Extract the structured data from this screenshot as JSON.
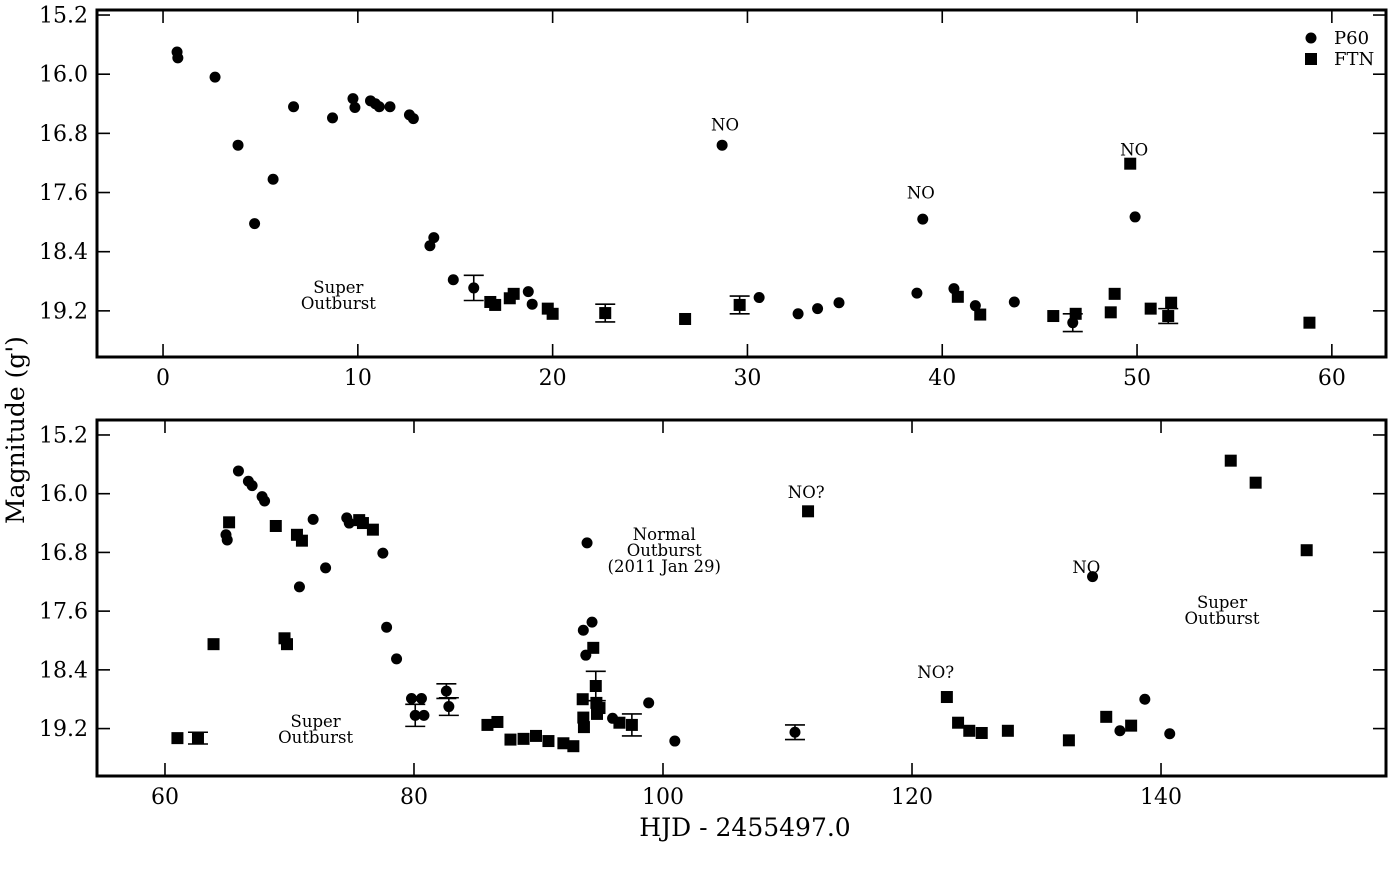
{
  "figure": {
    "xlabel": "HJD - 2455497.0",
    "ylabel": "Magnitude (g')",
    "background": "#ffffff",
    "ink": "#000000"
  },
  "legend": {
    "position": "top-right",
    "items": [
      {
        "label": "P60",
        "marker": "circle"
      },
      {
        "label": "FTN",
        "marker": "square"
      }
    ]
  },
  "chart_data": {
    "type": "scatter",
    "title": "",
    "xlabel": "HJD - 2455497.0",
    "ylabel": "Magnitude (g')",
    "y_axis_inverted": true,
    "grid": false,
    "panels": [
      {
        "name": "top",
        "xlim": [
          -3.39,
          62.78
        ],
        "ylim": [
          15.132,
          19.824
        ],
        "xticks": [
          0,
          10,
          20,
          30,
          40,
          50,
          60
        ],
        "yticks": [
          15.2,
          16.0,
          16.8,
          17.6,
          18.4,
          19.2
        ],
        "series": [
          {
            "name": "P60",
            "marker": "circle",
            "points": [
              [
                0.72,
                15.7
              ],
              [
                0.76,
                15.78
              ],
              [
                2.67,
                16.04
              ],
              [
                3.85,
                16.96
              ],
              [
                4.7,
                18.02
              ],
              [
                5.65,
                17.42
              ],
              [
                6.7,
                16.44
              ],
              [
                8.7,
                16.59
              ],
              [
                9.75,
                16.33
              ],
              [
                9.85,
                16.45
              ],
              [
                10.65,
                16.36
              ],
              [
                10.9,
                16.4
              ],
              [
                11.1,
                16.44
              ],
              [
                11.65,
                16.44
              ],
              [
                12.65,
                16.55
              ],
              [
                12.85,
                16.6
              ],
              [
                13.7,
                18.32
              ],
              [
                13.9,
                18.21
              ],
              [
                14.9,
                18.78
              ],
              [
                15.95,
                18.89,
                0.17
              ],
              [
                18.75,
                18.94
              ],
              [
                18.95,
                19.11
              ],
              [
                28.7,
                16.96
              ],
              [
                30.6,
                19.02
              ],
              [
                32.6,
                19.24
              ],
              [
                33.6,
                19.17
              ],
              [
                34.7,
                19.09
              ],
              [
                38.7,
                18.96
              ],
              [
                39.0,
                17.96
              ],
              [
                40.6,
                18.9
              ],
              [
                41.7,
                19.13
              ],
              [
                43.7,
                19.08
              ],
              [
                46.7,
                19.36,
                0.12
              ],
              [
                49.9,
                17.93
              ]
            ]
          },
          {
            "name": "FTN",
            "marker": "square",
            "points": [
              [
                16.8,
                19.08
              ],
              [
                17.05,
                19.12
              ],
              [
                17.8,
                19.03
              ],
              [
                18.0,
                18.97
              ],
              [
                19.75,
                19.17
              ],
              [
                20.0,
                19.24
              ],
              [
                22.7,
                19.23,
                0.12
              ],
              [
                26.8,
                19.31
              ],
              [
                29.6,
                19.12,
                0.12
              ],
              [
                40.8,
                19.01
              ],
              [
                41.95,
                19.25
              ],
              [
                45.7,
                19.27
              ],
              [
                46.85,
                19.24
              ],
              [
                48.65,
                19.22
              ],
              [
                48.85,
                18.97
              ],
              [
                49.65,
                17.21
              ],
              [
                50.7,
                19.17
              ],
              [
                51.6,
                19.27,
                0.1
              ],
              [
                51.75,
                19.09
              ],
              [
                58.85,
                19.36
              ]
            ]
          }
        ],
        "annotations": [
          {
            "lines": [
              "Super",
              "Outburst"
            ],
            "x": 9.0,
            "y": 18.96
          },
          {
            "lines": [
              "NO"
            ],
            "x": 28.85,
            "y": 16.76
          },
          {
            "lines": [
              "NO"
            ],
            "x": 38.9,
            "y": 17.68
          },
          {
            "lines": [
              "NO"
            ],
            "x": 49.85,
            "y": 17.1
          }
        ],
        "show_legend": true
      },
      {
        "name": "bottom",
        "xlim": [
          54.54,
          158.07
        ],
        "ylim": [
          14.996,
          19.846
        ],
        "xticks": [
          60,
          80,
          100,
          120,
          140
        ],
        "yticks": [
          15.2,
          16.0,
          16.8,
          17.6,
          18.4,
          19.2
        ],
        "series": [
          {
            "name": "P60",
            "marker": "circle",
            "points": [
              [
                64.9,
                16.56
              ],
              [
                65.0,
                16.63
              ],
              [
                65.9,
                15.69
              ],
              [
                66.7,
                15.83
              ],
              [
                67.0,
                15.89
              ],
              [
                67.8,
                16.04
              ],
              [
                68.0,
                16.1
              ],
              [
                70.8,
                17.27
              ],
              [
                71.9,
                16.35
              ],
              [
                72.9,
                17.01
              ],
              [
                74.6,
                16.33
              ],
              [
                74.8,
                16.4
              ],
              [
                77.5,
                16.81
              ],
              [
                77.8,
                17.82
              ],
              [
                78.6,
                18.25
              ],
              [
                79.8,
                18.79
              ],
              [
                80.1,
                19.02,
                0.15
              ],
              [
                80.6,
                18.79
              ],
              [
                80.8,
                19.02
              ],
              [
                82.6,
                18.69,
                0.1
              ],
              [
                82.8,
                18.9,
                0.12
              ],
              [
                93.6,
                17.86
              ],
              [
                93.8,
                18.2
              ],
              [
                93.9,
                16.67
              ],
              [
                94.3,
                17.75
              ],
              [
                95.95,
                19.06
              ],
              [
                98.85,
                18.85
              ],
              [
                100.95,
                19.37
              ],
              [
                110.6,
                19.25,
                0.1
              ],
              [
                134.5,
                17.13
              ],
              [
                136.7,
                19.23
              ],
              [
                138.7,
                18.8
              ],
              [
                140.7,
                19.27
              ]
            ]
          },
          {
            "name": "FTN",
            "marker": "square",
            "points": [
              [
                61.0,
                19.33
              ],
              [
                62.65,
                19.33,
                0.08
              ],
              [
                63.9,
                18.05
              ],
              [
                65.15,
                16.39
              ],
              [
                68.9,
                16.44
              ],
              [
                69.6,
                17.97
              ],
              [
                69.8,
                18.05
              ],
              [
                70.6,
                16.56
              ],
              [
                71.0,
                16.64
              ],
              [
                75.6,
                16.36
              ],
              [
                75.9,
                16.4
              ],
              [
                76.7,
                16.49
              ],
              [
                85.9,
                19.15
              ],
              [
                86.7,
                19.11
              ],
              [
                87.75,
                19.35
              ],
              [
                88.8,
                19.34
              ],
              [
                89.8,
                19.3
              ],
              [
                90.8,
                19.37
              ],
              [
                92.0,
                19.4
              ],
              [
                92.8,
                19.44
              ],
              [
                93.55,
                18.8
              ],
              [
                93.6,
                19.05
              ],
              [
                93.65,
                19.18
              ],
              [
                94.4,
                18.1
              ],
              [
                94.6,
                18.62,
                0.2
              ],
              [
                94.65,
                18.85
              ],
              [
                94.7,
                19.0
              ],
              [
                94.9,
                18.92
              ],
              [
                96.5,
                19.12
              ],
              [
                97.5,
                19.15,
                0.15
              ],
              [
                111.65,
                16.24
              ],
              [
                122.8,
                18.77
              ],
              [
                123.7,
                19.12
              ],
              [
                124.6,
                19.23
              ],
              [
                125.6,
                19.26
              ],
              [
                127.7,
                19.23
              ],
              [
                132.6,
                19.36
              ],
              [
                135.6,
                19.04
              ],
              [
                137.6,
                19.16
              ],
              [
                145.6,
                15.55
              ],
              [
                147.6,
                15.85
              ],
              [
                151.7,
                16.77
              ]
            ]
          }
        ],
        "annotations": [
          {
            "lines": [
              "Super",
              "Outburst"
            ],
            "x": 72.1,
            "y": 19.18
          },
          {
            "lines": [
              "Normal",
              "Outburst",
              "(2011 Jan 29)"
            ],
            "x": 100.1,
            "y": 16.63
          },
          {
            "lines": [
              "NO?"
            ],
            "x": 111.5,
            "y": 16.06
          },
          {
            "lines": [
              "NO?"
            ],
            "x": 121.9,
            "y": 18.51
          },
          {
            "lines": [
              "NO"
            ],
            "x": 134.0,
            "y": 17.08
          },
          {
            "lines": [
              "Super",
              "Outburst"
            ],
            "x": 144.9,
            "y": 17.56
          }
        ],
        "show_legend": false
      }
    ]
  }
}
